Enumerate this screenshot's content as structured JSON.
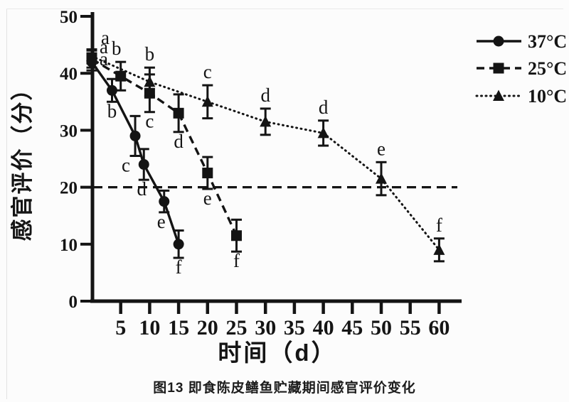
{
  "figure": {
    "caption": "图13 即食陈皮鳝鱼贮藏期间感官评价变化"
  },
  "chart_data": {
    "type": "line",
    "title": "",
    "xlabel": "时间（d）",
    "ylabel": "感官评价（分）",
    "xlim": [
      0,
      64
    ],
    "ylim": [
      0,
      50
    ],
    "x_ticks": [
      5,
      10,
      15,
      20,
      25,
      30,
      35,
      40,
      45,
      50,
      55,
      60
    ],
    "y_ticks": [
      0,
      10,
      20,
      30,
      40,
      50
    ],
    "grid": false,
    "legend_position": "top-right",
    "threshold_line": {
      "y": 20,
      "style": "dashed"
    },
    "ink_color": "#141414",
    "background_color": "#fcfcfc",
    "series": [
      {
        "name": "37°C",
        "marker": "circle",
        "line": "solid",
        "points": [
          {
            "x": 0,
            "y": 42,
            "err": 1.5,
            "label": "a",
            "label_pos": "custom",
            "label_dx": 17,
            "label_dy": 5
          },
          {
            "x": 3.5,
            "y": 37,
            "err": 2.0,
            "label": "b",
            "label_pos": "below"
          },
          {
            "x": 7.5,
            "y": 29,
            "err": 3.5,
            "label": "c",
            "label_pos": "below",
            "label_dx": -13
          },
          {
            "x": 9,
            "y": 24,
            "err": 2.7,
            "label": "d",
            "label_pos": "below",
            "label_dx": -3
          },
          {
            "x": 12.5,
            "y": 17.5,
            "err": 1.9,
            "label": "e",
            "label_pos": "below",
            "label_dx": -4
          },
          {
            "x": 15,
            "y": 10,
            "err": 2.4,
            "label": "f",
            "label_pos": "below"
          }
        ]
      },
      {
        "name": "25°C",
        "marker": "square",
        "line": "dashed",
        "points": [
          {
            "x": 0,
            "y": 42.5,
            "err": 1.5,
            "label": "a",
            "label_pos": "custom",
            "label_dx": 17,
            "label_dy": -8
          },
          {
            "x": 5,
            "y": 39.5,
            "err": 2.5,
            "label": "b",
            "label_pos": "above",
            "label_dx": -6
          },
          {
            "x": 10,
            "y": 36.5,
            "err": 3.3,
            "label": "c",
            "label_pos": "below"
          },
          {
            "x": 15,
            "y": 33,
            "err": 3.3,
            "label": "d",
            "label_pos": "below"
          },
          {
            "x": 20,
            "y": 22.5,
            "err": 2.8,
            "label": "e",
            "label_pos": "below"
          },
          {
            "x": 25,
            "y": 11.5,
            "err": 2.8,
            "label": "f",
            "label_pos": "below"
          }
        ]
      },
      {
        "name": "10°C",
        "marker": "triangle",
        "line": "dotted",
        "points": [
          {
            "x": 0,
            "y": 43,
            "err": 1.2,
            "label": "a",
            "label_pos": "custom",
            "label_dx": 19,
            "label_dy": -17
          },
          {
            "x": 10,
            "y": 38.5,
            "err": 2.5,
            "label": "b",
            "label_pos": "above"
          },
          {
            "x": 20,
            "y": 35,
            "err": 2.9,
            "label": "c",
            "label_pos": "above"
          },
          {
            "x": 30,
            "y": 31.5,
            "err": 2.3,
            "label": "d",
            "label_pos": "above"
          },
          {
            "x": 40,
            "y": 29.5,
            "err": 2.2,
            "label": "d",
            "label_pos": "above"
          },
          {
            "x": 50,
            "y": 21.5,
            "err": 2.9,
            "label": "e",
            "label_pos": "above"
          },
          {
            "x": 60,
            "y": 9,
            "err": 2.0,
            "label": "f",
            "label_pos": "above"
          }
        ]
      }
    ]
  }
}
